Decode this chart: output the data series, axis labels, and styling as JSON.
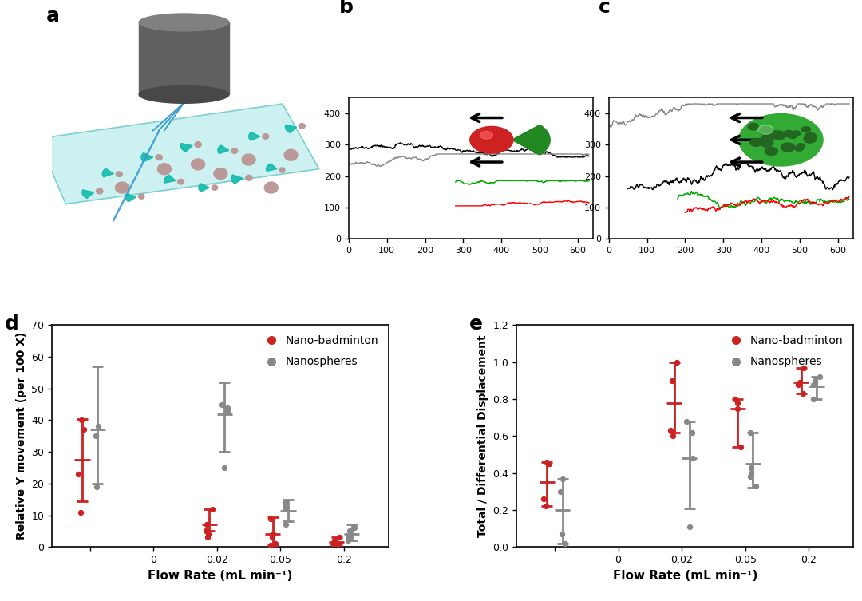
{
  "panel_d": {
    "label": "d",
    "xlabel": "Flow Rate (mL min⁻¹)",
    "ylabel": "Relative Y movement (per 100 X)",
    "ylim": [
      0,
      70
    ],
    "yticks": [
      0,
      10,
      20,
      30,
      40,
      50,
      60,
      70
    ],
    "x_positions": [
      1,
      2,
      3,
      4,
      5
    ],
    "xtick_labels": [
      "",
      "0",
      "0.02",
      "0.05",
      "0.2"
    ],
    "red_points": [
      [
        40,
        37,
        23,
        11
      ],
      [],
      [
        12,
        7,
        5,
        4,
        3
      ],
      [
        9,
        4,
        3,
        1,
        0.5
      ],
      [
        3,
        2,
        1,
        1
      ]
    ],
    "red_mean": [
      27.5,
      null,
      7.0,
      4.0,
      1.5
    ],
    "red_err_low": [
      13.0,
      null,
      2.0,
      3.5,
      1.0
    ],
    "red_err_high": [
      13.0,
      null,
      5.0,
      5.5,
      1.5
    ],
    "gray_points": [
      [
        38,
        35,
        19
      ],
      [],
      [
        45,
        44,
        43,
        25
      ],
      [
        14,
        13,
        12,
        7
      ],
      [
        6,
        5,
        3,
        2
      ]
    ],
    "gray_mean": [
      37.0,
      null,
      42.0,
      11.5,
      4.0
    ],
    "gray_err_low": [
      17.0,
      null,
      12.0,
      3.5,
      2.0
    ],
    "gray_err_high": [
      20.0,
      null,
      10.0,
      3.5,
      3.0
    ],
    "legend_red": "Nano-badminton",
    "legend_gray": "Nanospheres",
    "red_color": "#CC2222",
    "gray_color": "#888888"
  },
  "panel_e": {
    "label": "e",
    "xlabel": "Flow Rate (mL min⁻¹)",
    "ylabel": "Total / Differential Displacement",
    "ylim": [
      0.0,
      1.2
    ],
    "yticks": [
      0.0,
      0.2,
      0.4,
      0.6,
      0.8,
      1.0,
      1.2
    ],
    "xtick_labels": [
      "",
      "0",
      "0.02",
      "0.05",
      "0.2"
    ],
    "x_positions": [
      1,
      2,
      3,
      4,
      5
    ],
    "red_points": [
      [
        0.46,
        0.45,
        0.26,
        0.22
      ],
      [],
      [
        1.0,
        0.9,
        0.63,
        0.6
      ],
      [
        0.8,
        0.78,
        0.75,
        0.54
      ],
      [
        0.97,
        0.89,
        0.88,
        0.83
      ]
    ],
    "red_mean": [
      0.35,
      null,
      0.78,
      0.75,
      0.89
    ],
    "red_err_low": [
      0.13,
      null,
      0.16,
      0.21,
      0.06
    ],
    "red_err_high": [
      0.11,
      null,
      0.22,
      0.05,
      0.08
    ],
    "gray_points": [
      [
        0.37,
        0.3,
        0.07,
        0.02
      ],
      [],
      [
        0.68,
        0.62,
        0.48,
        0.11
      ],
      [
        0.62,
        0.43,
        0.4,
        0.38,
        0.33
      ],
      [
        0.92,
        0.9,
        0.88,
        0.8
      ]
    ],
    "gray_mean": [
      0.2,
      null,
      0.48,
      0.45,
      0.87
    ],
    "gray_err_low": [
      0.18,
      null,
      0.27,
      0.13,
      0.07
    ],
    "gray_err_high": [
      0.17,
      null,
      0.2,
      0.17,
      0.05
    ],
    "legend_red": "Nano-badminton",
    "legend_gray": "Nanospheres",
    "red_color": "#CC2222",
    "gray_color": "#888888"
  }
}
